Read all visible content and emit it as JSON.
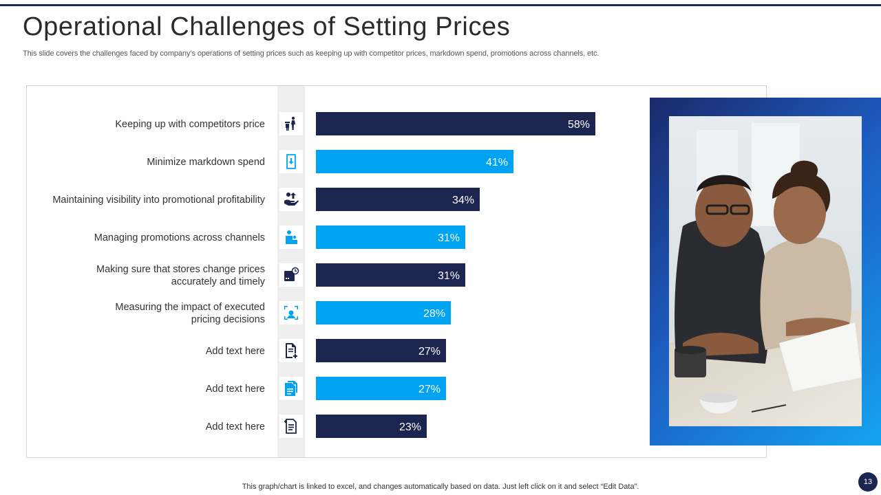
{
  "slide": {
    "title": "Operational Challenges of Setting Prices",
    "subtitle": "This slide covers the challenges faced by company’s operations of setting prices such as keeping up with competitor prices, markdown spend, promotions across channels, etc.",
    "footer_note": "This graph/chart is linked to excel,  and changes automatically based on data. Just left click on it and select “Edit Data”.",
    "page_number": "13"
  },
  "colors": {
    "navy": "#1b2550",
    "sky": "#00a3f2",
    "navy_dark": "#1b2550"
  },
  "icons": [
    "competitor-price-icon",
    "markdown-download-icon",
    "promotional-profit-icon",
    "promotions-channels-icon",
    "store-prices-clock-icon",
    "impact-measure-icon",
    "document-add-icon",
    "documents-copy-icon",
    "document-list-icon"
  ],
  "chart_data": {
    "type": "bar",
    "orientation": "horizontal",
    "title": "",
    "xlabel": "",
    "ylabel": "",
    "xlim": [
      0,
      100
    ],
    "value_suffix": "%",
    "categories": [
      [
        "Keeping up with competitors  price"
      ],
      [
        "Minimize markdown spend"
      ],
      [
        "Maintaining  visibility into promotional profitability"
      ],
      [
        "Managing promotions across channels"
      ],
      [
        "Making  sure that stores change prices",
        "accurately and timely"
      ],
      [
        "Measuring the impact of executed",
        "pricing decisions"
      ],
      [
        "Add text here"
      ],
      [
        "Add text here"
      ],
      [
        "Add text here"
      ]
    ],
    "values": [
      58,
      41,
      34,
      31,
      31,
      28,
      27,
      27,
      23
    ],
    "bar_colors": [
      "navy",
      "sky",
      "navy",
      "sky",
      "navy",
      "sky",
      "navy",
      "sky",
      "navy"
    ],
    "grid": false,
    "legend": "none"
  }
}
